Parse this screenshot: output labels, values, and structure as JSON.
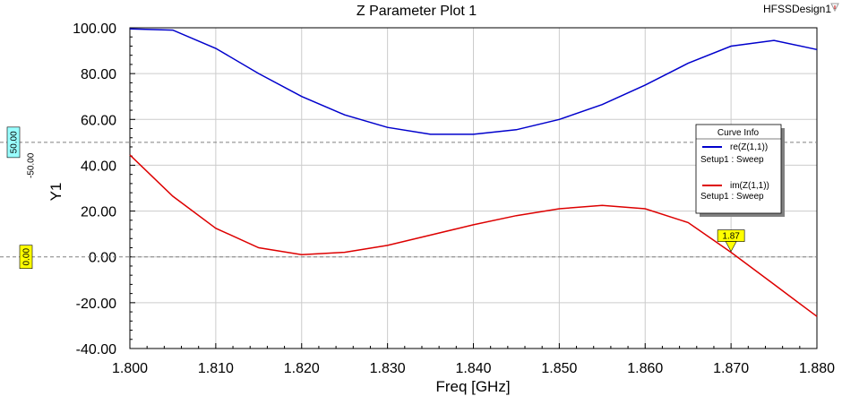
{
  "header": {
    "title": "Z Parameter Plot 1",
    "design_name": "HFSSDesign1"
  },
  "colors": {
    "re_series": "#0000cc",
    "im_series": "#dd0000",
    "grid": "#cccccc",
    "ref50_badge": "#99ffff",
    "ref0_badge": "#ffff00",
    "marker_fill": "#ffff00"
  },
  "legend": {
    "title": "Curve Info",
    "entries": [
      {
        "name": "re(Z(1,1))",
        "setup": "Setup1 : Sweep",
        "color": "#0000cc"
      },
      {
        "name": "im(Z(1,1))",
        "setup": "Setup1 : Sweep",
        "color": "#dd0000"
      }
    ]
  },
  "reference_lines": {
    "y50_label": "50.00",
    "y50_offset_label": "-50.00",
    "y0_label": "0.00"
  },
  "marker": {
    "label": "1.87"
  },
  "chart_data": {
    "type": "line",
    "xlabel": "Freq [GHz]",
    "ylabel": "Y1",
    "xlim": [
      1.8,
      1.88
    ],
    "ylim": [
      -40,
      100
    ],
    "x_ticks": [
      "1.800",
      "1.810",
      "1.820",
      "1.830",
      "1.840",
      "1.850",
      "1.860",
      "1.870",
      "1.880"
    ],
    "y_ticks": [
      "100.00",
      "80.00",
      "60.00",
      "40.00",
      "20.00",
      "0.00",
      "-20.00",
      "-40.00"
    ],
    "grid": true,
    "legend_position": "right",
    "x": [
      1.8,
      1.805,
      1.81,
      1.815,
      1.82,
      1.825,
      1.83,
      1.835,
      1.84,
      1.845,
      1.85,
      1.855,
      1.86,
      1.865,
      1.87,
      1.875,
      1.88
    ],
    "series": [
      {
        "name": "re(Z(1,1))",
        "values": [
          99.5,
          99.0,
          91.0,
          80.0,
          70.0,
          62.0,
          56.5,
          53.5,
          53.5,
          55.5,
          60.0,
          66.5,
          75.0,
          84.5,
          92.0,
          94.5,
          90.5
        ]
      },
      {
        "name": "im(Z(1,1))",
        "values": [
          44.5,
          26.5,
          12.5,
          4.0,
          1.0,
          2.0,
          5.0,
          9.5,
          14.0,
          18.0,
          21.0,
          22.5,
          21.0,
          15.0,
          2.0,
          -12.0,
          -26.0
        ]
      }
    ],
    "marker_x": 1.87
  }
}
